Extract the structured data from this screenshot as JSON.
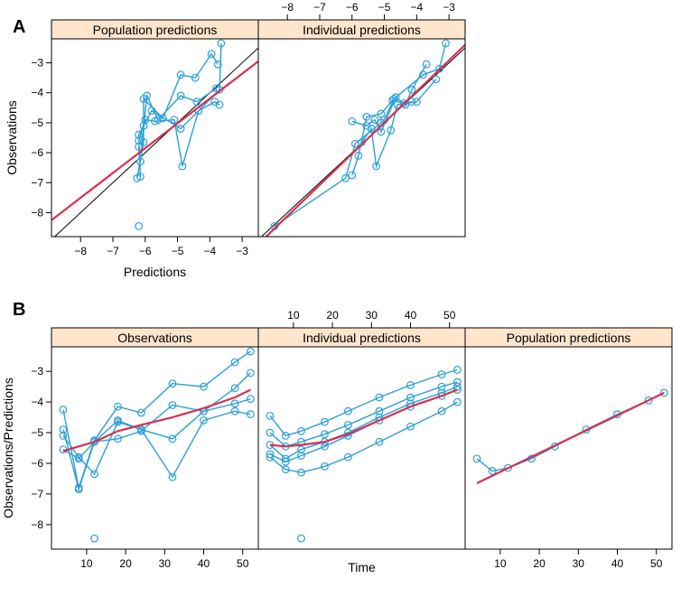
{
  "panel_labels": {
    "a": "A",
    "b": "B"
  },
  "colors": {
    "points": "#2b9fd8",
    "smooth": "#d9304f",
    "identity": "#000000",
    "strip": "#ffe5cc"
  },
  "chart_data": [
    {
      "id": "A",
      "type": "scatter",
      "xlabel": "Predictions",
      "ylabel": "Observations",
      "xlim": [
        -8.9,
        -2.5
      ],
      "ylim": [
        -8.8,
        -2.2
      ],
      "xticks": [
        -8,
        -7,
        -6,
        -5,
        -4,
        -3
      ],
      "yticks": [
        -8,
        -7,
        -6,
        -5,
        -4,
        -3
      ],
      "panels": [
        {
          "strip": "Population predictions",
          "series": [
            {
              "x": [
                -6.2,
                -6.15,
                -6.2,
                -6.05,
                -5.8,
                -4.9,
                -3.7,
                -3.65
              ],
              "y": [
                -5.8,
                -6.8,
                -5.4,
                -5.1,
                -4.6,
                -5.2,
                -3.9,
                -2.35
              ]
            },
            {
              "x": [
                -6.25,
                -6.05,
                -6.05,
                -5.45,
                -4.9,
                -4.45,
                -3.95,
                -3.75
              ],
              "y": [
                -6.85,
                -5.65,
                -4.2,
                -4.85,
                -3.4,
                -3.5,
                -2.7,
                -3.05
              ]
            },
            {
              "x": [
                -6.15,
                -5.95,
                -5.6,
                -4.9,
                -4.4,
                -3.8
              ],
              "y": [
                -6.3,
                -4.1,
                -4.9,
                -4.1,
                -4.3,
                -3.85
              ]
            },
            {
              "x": [
                -6.2,
                -6.0,
                -5.7,
                -5.1,
                -4.85,
                -4.35,
                -3.85,
                -3.7
              ],
              "y": [
                -5.6,
                -4.9,
                -4.95,
                -4.9,
                -6.45,
                -4.6,
                -4.3,
                -4.4
              ]
            }
          ],
          "isolated": [
            {
              "x": -6.2,
              "y": -8.45
            }
          ],
          "smooth": {
            "x": [
              -8.9,
              -2.5
            ],
            "y": [
              -8.25,
              -2.95
            ]
          }
        },
        {
          "strip": "Individual predictions",
          "series": [
            {
              "x": [
                -8.4,
                -6.2,
                -5.9,
                -5.1,
                -5.0,
                -4.7,
                -3.8,
                -3.3,
                -3.1
              ],
              "y": [
                -8.45,
                -6.85,
                -5.7,
                -5.0,
                -4.9,
                -4.2,
                -3.4,
                -3.2,
                -2.35
              ]
            },
            {
              "x": [
                -6.0,
                -5.55,
                -5.3,
                -5.1,
                -4.65,
                -4.35,
                -4.15,
                -3.7
              ],
              "y": [
                -4.95,
                -5.1,
                -4.9,
                -5.3,
                -4.15,
                -4.4,
                -3.9,
                -3.05
              ]
            },
            {
              "x": [
                -6.0,
                -5.8,
                -5.55,
                -5.1,
                -4.75,
                -4.4,
                -4.15
              ],
              "y": [
                -6.75,
                -6.1,
                -4.8,
                -4.7,
                -4.25,
                -4.35,
                -4.3
              ]
            },
            {
              "x": [
                -5.7,
                -5.4,
                -5.25,
                -4.8,
                -4.6,
                -4.0,
                -3.4
              ],
              "y": [
                -5.65,
                -5.2,
                -6.45,
                -5.25,
                -4.4,
                -4.3,
                -3.55
              ]
            }
          ],
          "isolated": [],
          "smooth": {
            "x": [
              -8.9,
              -2.5
            ],
            "y": [
              -9.05,
              -2.4
            ]
          }
        }
      ],
      "identity_line": true
    },
    {
      "id": "B",
      "type": "line",
      "xlabel": "Time",
      "ylabel": "Observations/Predictions",
      "xlim": [
        1,
        54
      ],
      "ylim": [
        -8.8,
        -2.2
      ],
      "xticks": [
        10,
        20,
        30,
        40,
        50
      ],
      "yticks": [
        -8,
        -7,
        -6,
        -5,
        -4,
        -3
      ],
      "panels": [
        {
          "strip": "Observations",
          "series": [
            {
              "x": [
                4,
                8,
                12,
                18,
                24,
                32,
                40,
                48,
                52
              ],
              "y": [
                -4.25,
                -6.8,
                -5.25,
                -4.15,
                -4.35,
                -3.4,
                -3.5,
                -2.7,
                -2.35
              ]
            },
            {
              "x": [
                4,
                8,
                12,
                18,
                24,
                32,
                40,
                48,
                52
              ],
              "y": [
                -5.55,
                -5.85,
                -5.3,
                -4.6,
                -4.9,
                -6.45,
                -4.6,
                -4.3,
                -4.4
              ]
            },
            {
              "x": [
                4,
                8,
                12,
                18,
                24,
                32,
                40,
                48,
                52
              ],
              "y": [
                -4.9,
                -6.85,
                -5.3,
                -5.2,
                -4.95,
                -4.1,
                -4.3,
                -3.55,
                -3.05
              ]
            },
            {
              "x": [
                4,
                8,
                12,
                18,
                24,
                32,
                40,
                48,
                52
              ],
              "y": [
                -5.1,
                -5.8,
                -6.35,
                -4.65,
                -4.9,
                -5.2,
                -4.3,
                -4.05,
                -3.9
              ]
            }
          ],
          "isolated": [
            {
              "x": 12,
              "y": -8.45
            }
          ],
          "smooth": {
            "x": [
              4,
              8,
              12,
              18,
              24,
              32,
              40,
              48,
              52
            ],
            "y": [
              -5.6,
              -5.45,
              -5.3,
              -4.95,
              -4.75,
              -4.5,
              -4.2,
              -3.85,
              -3.6
            ]
          }
        },
        {
          "strip": "Individual predictions",
          "series": [
            {
              "x": [
                4,
                8,
                12,
                18,
                24,
                32,
                40,
                48,
                52
              ],
              "y": [
                -4.45,
                -5.1,
                -4.95,
                -4.65,
                -4.3,
                -3.85,
                -3.45,
                -3.1,
                -2.95
              ]
            },
            {
              "x": [
                4,
                8,
                12,
                18,
                24,
                32,
                40,
                48,
                52
              ],
              "y": [
                -5.0,
                -5.45,
                -5.3,
                -5.05,
                -4.75,
                -4.3,
                -3.85,
                -3.5,
                -3.35
              ]
            },
            {
              "x": [
                4,
                8,
                12,
                18,
                24,
                32,
                40,
                48,
                52
              ],
              "y": [
                -5.7,
                -5.95,
                -5.75,
                -5.45,
                -5.1,
                -4.6,
                -4.15,
                -3.8,
                -3.6
              ]
            },
            {
              "x": [
                4,
                8,
                12,
                18,
                24,
                32,
                40,
                48,
                52
              ],
              "y": [
                -5.4,
                -5.85,
                -5.55,
                -5.3,
                -5.0,
                -4.5,
                -4.05,
                -3.7,
                -3.5
              ]
            },
            {
              "x": [
                4,
                8,
                12,
                18,
                24,
                32,
                40,
                48,
                52
              ],
              "y": [
                -5.8,
                -6.2,
                -6.3,
                -6.1,
                -5.8,
                -5.3,
                -4.8,
                -4.3,
                -4.0
              ]
            }
          ],
          "isolated": [
            {
              "x": 12,
              "y": -8.45
            }
          ],
          "smooth": {
            "x": [
              4,
              8,
              12,
              18,
              24,
              32,
              40,
              48,
              52
            ],
            "y": [
              -5.4,
              -5.45,
              -5.4,
              -5.3,
              -5.05,
              -4.6,
              -4.15,
              -3.8,
              -3.6
            ]
          }
        },
        {
          "strip": "Population predictions",
          "series": [
            {
              "x": [
                4,
                8,
                12,
                18,
                24,
                32,
                40,
                48,
                52
              ],
              "y": [
                -5.85,
                -6.25,
                -6.15,
                -5.85,
                -5.45,
                -4.9,
                -4.4,
                -3.95,
                -3.7
              ]
            }
          ],
          "isolated": [],
          "smooth": {
            "x": [
              4,
              52
            ],
            "y": [
              -6.65,
              -3.7
            ]
          }
        }
      ],
      "identity_line": false
    }
  ]
}
